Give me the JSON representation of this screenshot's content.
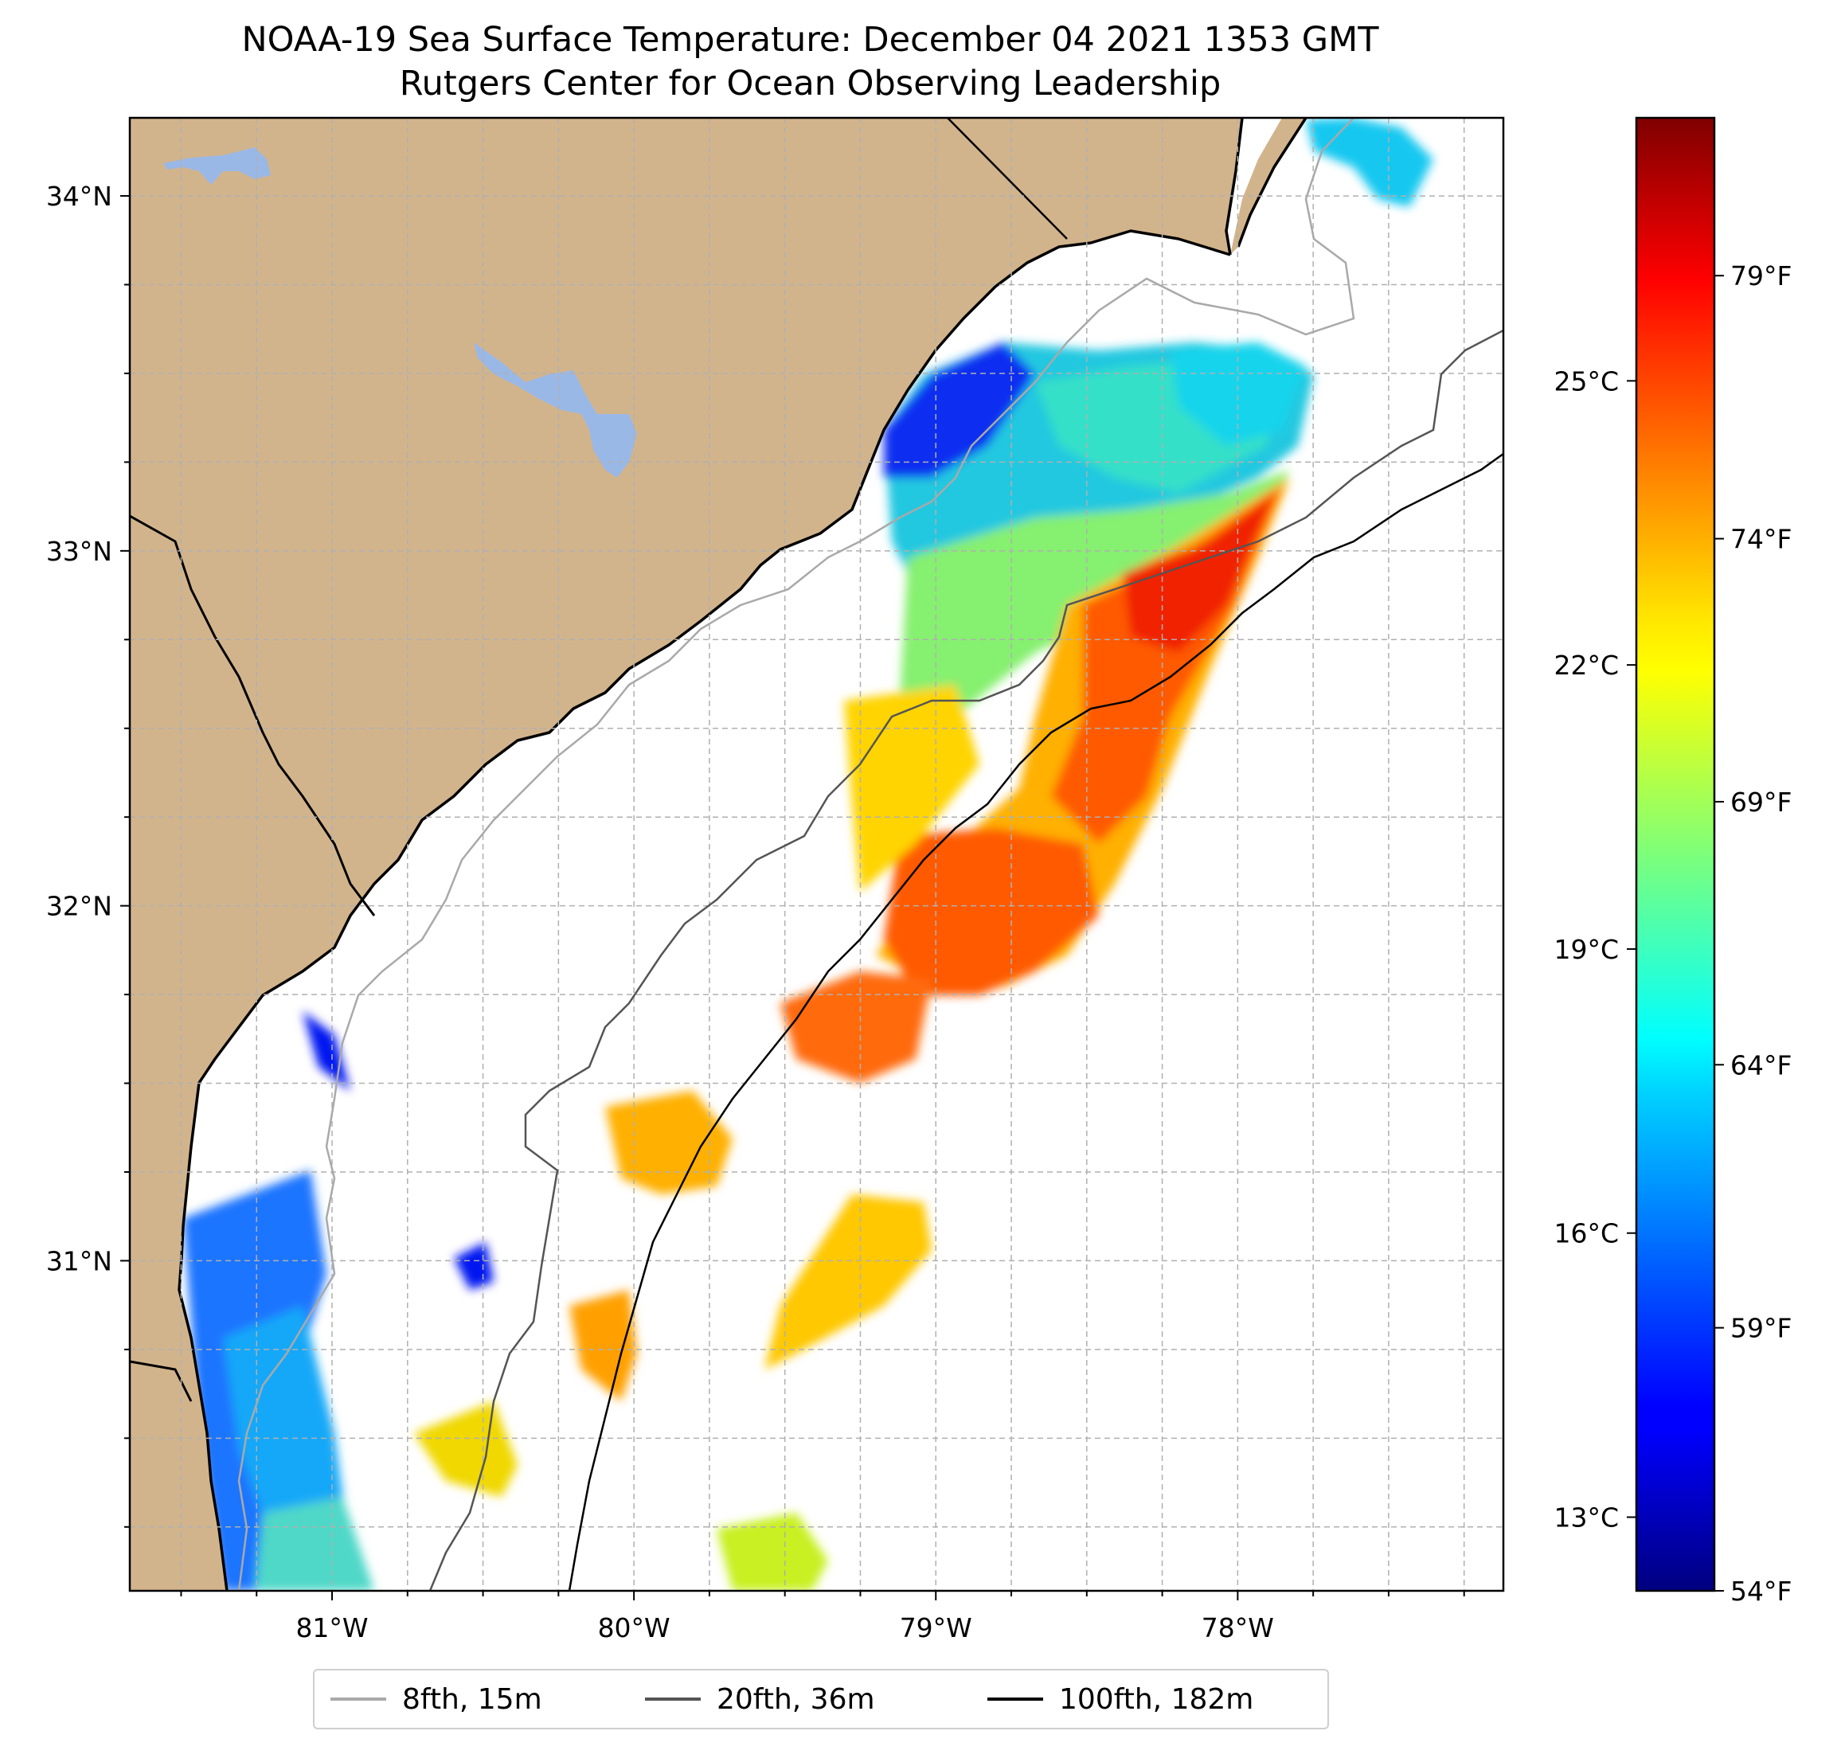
{
  "title": {
    "line1": "NOAA-19 Sea Surface Temperature: December 04 2021 1353 GMT",
    "line2": "Rutgers Center for Ocean Observing Leadership"
  },
  "map": {
    "lon_range": [
      -81.67,
      -77.12
    ],
    "lat_range": [
      30.07,
      34.22
    ],
    "x_ticks": [
      {
        "value": -81,
        "label": "81°W"
      },
      {
        "value": -80,
        "label": "80°W"
      },
      {
        "value": -79,
        "label": "79°W"
      },
      {
        "value": -78,
        "label": "78°W"
      }
    ],
    "y_ticks": [
      {
        "value": 34,
        "label": "34°N"
      },
      {
        "value": 33,
        "label": "33°N"
      },
      {
        "value": 32,
        "label": "32°N"
      },
      {
        "value": 31,
        "label": "31°N"
      }
    ],
    "minor_lon_step": 0.25,
    "minor_lat_step": 0.25,
    "colors": {
      "land": "#d2b48c",
      "lakes": "#9ab8e6",
      "grid": "#b0b0b0",
      "coast": "#000000"
    }
  },
  "colorbar": {
    "celsius_ticks": [
      {
        "value": 25,
        "label": "25°C"
      },
      {
        "value": 22,
        "label": "22°C"
      },
      {
        "value": 19,
        "label": "19°C"
      },
      {
        "value": 16,
        "label": "16°C"
      },
      {
        "value": 13,
        "label": "13°C"
      }
    ],
    "fahrenheit_ticks": [
      {
        "value": 79,
        "label": "79°F"
      },
      {
        "value": 74,
        "label": "74°F"
      },
      {
        "value": 69,
        "label": "69°F"
      },
      {
        "value": 64,
        "label": "64°F"
      },
      {
        "value": 59,
        "label": "59°F"
      },
      {
        "value": 54,
        "label": "54°F"
      }
    ],
    "range_f": [
      54,
      82
    ],
    "colormap": "jet"
  },
  "legend": {
    "items": [
      {
        "label": "8fth, 15m",
        "color": "#a9a9a9"
      },
      {
        "label": "20fth, 36m",
        "color": "#555555"
      },
      {
        "label": "100fth, 182m",
        "color": "#000000"
      }
    ]
  }
}
